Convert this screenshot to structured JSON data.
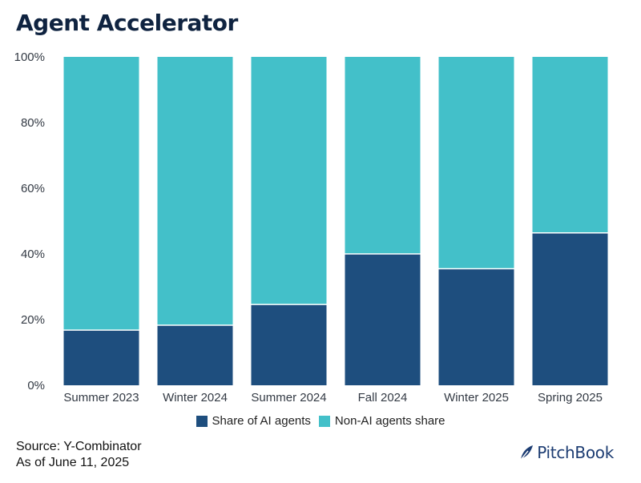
{
  "title": "Agent Accelerator",
  "chart_data": {
    "type": "bar",
    "stacked": true,
    "categories": [
      "Summer 2023",
      "Winter 2024",
      "Summer 2024",
      "Fall 2024",
      "Winter 2025",
      "Spring 2025"
    ],
    "series": [
      {
        "name": "Share of AI agents",
        "color": "#1e4e7e",
        "values": [
          16.8,
          18.3,
          24.6,
          40.0,
          35.5,
          46.4
        ]
      },
      {
        "name": "Non-AI agents share",
        "color": "#43c0c9",
        "values": [
          83.2,
          81.7,
          75.4,
          60.0,
          64.5,
          53.6
        ]
      }
    ],
    "ylim": [
      0,
      100
    ],
    "yticks": [
      "0%",
      "20%",
      "40%",
      "60%",
      "80%",
      "100%"
    ],
    "xlabel": "",
    "ylabel": "",
    "legend_position": "bottom-center"
  },
  "legend": {
    "ai_label": "Share of AI agents",
    "non_ai_label": "Non-AI agents share"
  },
  "footer": {
    "source": "Source: Y-Combinator",
    "date": "As of June 11, 2025"
  },
  "logo": {
    "text": "PitchBook"
  }
}
